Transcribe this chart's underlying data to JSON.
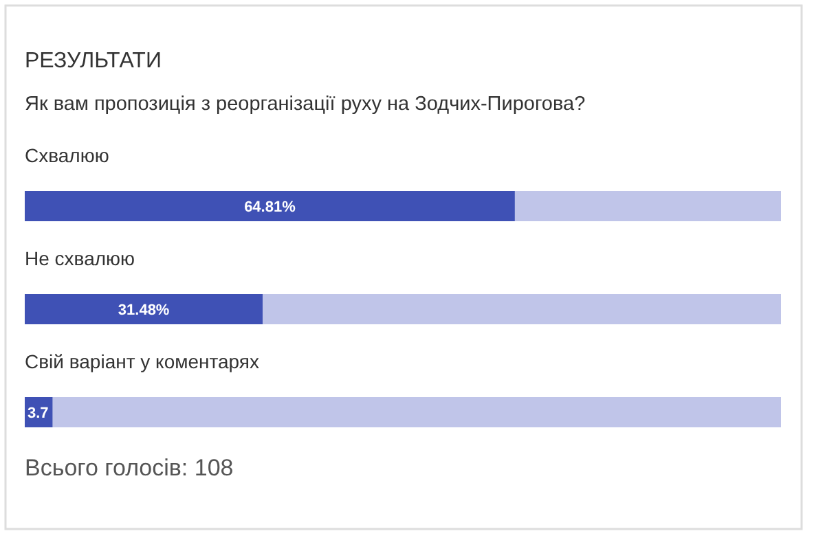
{
  "chart_data": {
    "type": "bar",
    "orientation": "horizontal",
    "stacked": true,
    "title": "РЕЗУЛЬТАТИ",
    "subtitle": "Як вам пропозиція з реорганізації руху на Зодчих-Пирогова?",
    "categories": [
      "Схвалюю",
      "Не схвалюю",
      "Свій варіант у коментарях"
    ],
    "series": [
      {
        "color": "#3f51b5",
        "values": [
          64.81,
          31.48,
          3.7
        ],
        "value_labels": [
          "64.81%",
          "31.48%",
          "3.7"
        ]
      },
      {
        "color": "#c0c5e9",
        "values": [
          35.19,
          68.52,
          96.3
        ]
      }
    ],
    "xlim": [
      0,
      100
    ],
    "annotations": [
      "Всього голосів: 108"
    ]
  }
}
